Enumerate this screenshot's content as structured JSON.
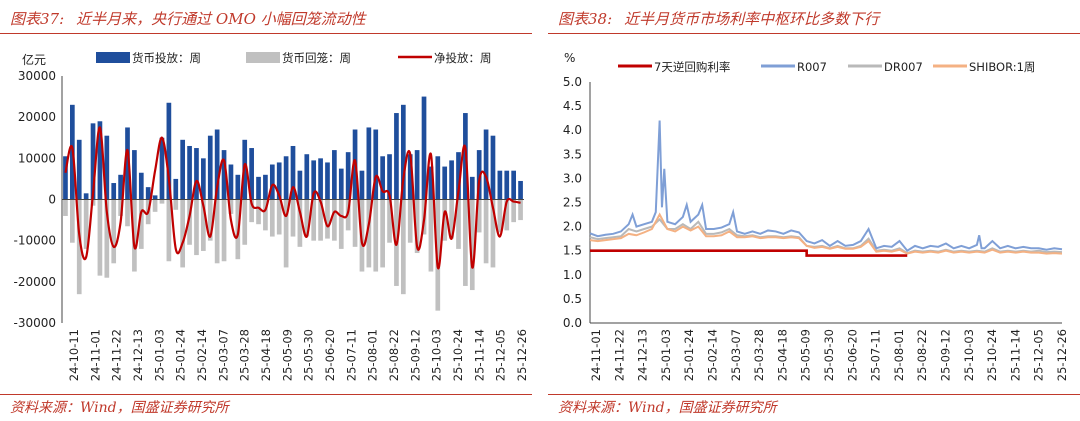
{
  "left": {
    "figure_label": "图表37:",
    "figure_title": "近半月来，央行通过 OMO 小幅回笼流动性",
    "source": "资料来源：Wind，国盛证券研究所"
  },
  "right": {
    "figure_label": "图表38:",
    "figure_title": "近半月货币市场利率中枢环比多数下行",
    "source": "资料来源：Wind，国盛证券研究所"
  },
  "chart_data": [
    {
      "type": "bar",
      "ylabel": "亿元",
      "ylim": [
        -30000,
        30000
      ],
      "yticks": [
        30000,
        20000,
        10000,
        0,
        -10000,
        -20000,
        -30000
      ],
      "xtick_labels": [
        "24-10-11",
        "24-11-01",
        "24-11-22",
        "24-12-13",
        "25-01-03",
        "25-01-24",
        "25-02-14",
        "25-03-07",
        "25-03-28",
        "25-04-18",
        "25-05-09",
        "25-05-30",
        "25-06-20",
        "25-07-11",
        "25-08-01",
        "25-08-22",
        "25-09-12",
        "25-10-03",
        "25-10-24",
        "25-11-14",
        "25-12-05",
        "25-12-26"
      ],
      "legend_placement": "top",
      "colors": {
        "injection": "#1f4e9c",
        "withdrawal": "#c0c0c0",
        "net": "#c00000"
      },
      "series": [
        {
          "name": "货币投放：周",
          "kind": "bar",
          "values": [
            10500,
            23000,
            14500,
            1500,
            18500,
            19000,
            15500,
            4000,
            6000,
            17500,
            12000,
            6500,
            3000,
            1000,
            15000,
            23500,
            5000,
            14500,
            13000,
            12500,
            10000,
            15500,
            17000,
            12000,
            8500,
            6000,
            14500,
            12500,
            5500,
            6000,
            8500,
            9000,
            10500,
            13000,
            7000,
            11000,
            9500,
            10000,
            9000,
            12000,
            7500,
            11500,
            17000,
            7000,
            17500,
            17000,
            10500,
            11000,
            21000,
            23000,
            11000,
            12000,
            25000,
            8000,
            10500,
            8000,
            9500,
            11500,
            21000,
            5500,
            12000,
            17000,
            15500,
            7000,
            7000,
            7000,
            4500
          ]
        },
        {
          "name": "货币回笼：周",
          "kind": "bar",
          "values": [
            -4000,
            -10500,
            -23000,
            -12000,
            -1500,
            -18500,
            -19000,
            -15500,
            -4000,
            -6500,
            -17500,
            -12000,
            -6000,
            -3000,
            -1000,
            -15000,
            -2500,
            -16500,
            -11000,
            -13500,
            -12500,
            -10000,
            -15500,
            -15000,
            -3500,
            -14500,
            -11000,
            -5500,
            -6000,
            -7500,
            -9000,
            -8500,
            -16500,
            -9000,
            -11500,
            -9000,
            -10000,
            -10000,
            -9500,
            -10000,
            -12000,
            -7500,
            -11500,
            -17500,
            -16500,
            -17500,
            -16500,
            -10500,
            -21000,
            -23000,
            -10500,
            -13000,
            -8500,
            -17500,
            -27000,
            -10000,
            -9500,
            -12000,
            -21000,
            -22000,
            -8000,
            -15500,
            -16500,
            -8000,
            -7500,
            -5500,
            -5000
          ]
        },
        {
          "name": "净投放：周",
          "kind": "line",
          "values": [
            6500,
            12500,
            -8500,
            -14000,
            1500,
            17500,
            -3000,
            -11500,
            -5500,
            12000,
            -11500,
            -3000,
            -3000,
            7000,
            15000,
            5000,
            -12000,
            -10500,
            -4000,
            4500,
            -1500,
            -9000,
            3000,
            9500,
            -5000,
            -8500,
            8500,
            -1000,
            -2000,
            -2500,
            3500,
            1000,
            -4000,
            3000,
            -3000,
            -9000,
            1500,
            -500,
            -6500,
            -3000,
            -4000,
            -3000,
            9500,
            -10500,
            -6000,
            5500,
            2000,
            1000,
            -11000,
            5000,
            11000,
            -11500,
            -5000,
            11000,
            -16500,
            -3000,
            -9500,
            2000,
            12500,
            -16500,
            4500,
            5500,
            -2000,
            -9000,
            -500,
            -500,
            -800
          ]
        }
      ]
    },
    {
      "type": "line",
      "ylabel": "%",
      "ylim": [
        0.0,
        5.0
      ],
      "yticks": [
        0.0,
        0.5,
        1.0,
        1.5,
        2.0,
        2.5,
        3.0,
        3.5,
        4.0,
        4.5,
        5.0
      ],
      "xtick_labels": [
        "24-11-01",
        "24-11-22",
        "24-12-13",
        "25-01-03",
        "25-01-24",
        "25-02-14",
        "25-03-07",
        "25-03-28",
        "25-04-18",
        "25-05-09",
        "25-05-30",
        "25-06-20",
        "25-07-11",
        "25-08-01",
        "25-08-22",
        "25-09-12",
        "25-10-03",
        "25-10-24",
        "25-11-14",
        "25-12-05",
        "25-12-26"
      ],
      "legend_placement": "top",
      "colors": {
        "policy": "#c00000",
        "DR007": "#b9b9b9",
        "R007": "#7f9fd6",
        "SHIBOR": "#f4b183"
      },
      "series": [
        {
          "name": "7天逆回购利率",
          "values": [
            [
              0,
              1.5
            ],
            [
              28,
              1.5
            ],
            [
              28,
              1.4
            ],
            [
              41,
              1.4
            ]
          ]
        },
        {
          "name": "R007",
          "values": [
            [
              0,
              1.86
            ],
            [
              1,
              1.8
            ],
            [
              2,
              1.83
            ],
            [
              3,
              1.85
            ],
            [
              4,
              1.9
            ],
            [
              5,
              2.05
            ],
            [
              5.5,
              2.25
            ],
            [
              6,
              2.0
            ],
            [
              7,
              2.05
            ],
            [
              8,
              2.1
            ],
            [
              8.5,
              2.3
            ],
            [
              9,
              4.2
            ],
            [
              9.3,
              2.4
            ],
            [
              9.6,
              3.2
            ],
            [
              10,
              2.1
            ],
            [
              11,
              2.05
            ],
            [
              12,
              2.2
            ],
            [
              12.5,
              2.45
            ],
            [
              13,
              2.1
            ],
            [
              14,
              2.25
            ],
            [
              14.5,
              2.45
            ],
            [
              15,
              1.95
            ],
            [
              16,
              1.95
            ],
            [
              17,
              1.98
            ],
            [
              18,
              2.05
            ],
            [
              18.5,
              2.3
            ],
            [
              19,
              1.9
            ],
            [
              20,
              1.85
            ],
            [
              21,
              1.9
            ],
            [
              22,
              1.85
            ],
            [
              23,
              1.92
            ],
            [
              24,
              1.9
            ],
            [
              25,
              1.85
            ],
            [
              26,
              1.92
            ],
            [
              27,
              1.88
            ],
            [
              28,
              1.7
            ],
            [
              29,
              1.65
            ],
            [
              30,
              1.72
            ],
            [
              31,
              1.6
            ],
            [
              32,
              1.7
            ],
            [
              33,
              1.6
            ],
            [
              34,
              1.62
            ],
            [
              35,
              1.7
            ],
            [
              36,
              1.95
            ],
            [
              37,
              1.55
            ],
            [
              38,
              1.6
            ],
            [
              39,
              1.58
            ],
            [
              40,
              1.7
            ],
            [
              41,
              1.5
            ],
            [
              42,
              1.6
            ],
            [
              43,
              1.55
            ],
            [
              44,
              1.6
            ],
            [
              45,
              1.58
            ],
            [
              46,
              1.65
            ],
            [
              47,
              1.55
            ],
            [
              48,
              1.6
            ],
            [
              49,
              1.55
            ],
            [
              50,
              1.62
            ],
            [
              50.3,
              1.82
            ],
            [
              50.6,
              1.55
            ],
            [
              51,
              1.55
            ],
            [
              52,
              1.7
            ],
            [
              53,
              1.55
            ],
            [
              54,
              1.6
            ],
            [
              55,
              1.55
            ],
            [
              56,
              1.58
            ],
            [
              57,
              1.55
            ],
            [
              58,
              1.55
            ],
            [
              59,
              1.52
            ],
            [
              60,
              1.55
            ],
            [
              61,
              1.53
            ]
          ]
        },
        {
          "name": "DR007",
          "values": [
            [
              0,
              1.78
            ],
            [
              1,
              1.74
            ],
            [
              2,
              1.76
            ],
            [
              3,
              1.78
            ],
            [
              4,
              1.8
            ],
            [
              5,
              1.95
            ],
            [
              6,
              1.9
            ],
            [
              7,
              1.95
            ],
            [
              8,
              2.0
            ],
            [
              9,
              2.15
            ],
            [
              10,
              1.95
            ],
            [
              11,
              1.95
            ],
            [
              12,
              2.05
            ],
            [
              13,
              1.95
            ],
            [
              14,
              2.1
            ],
            [
              15,
              1.85
            ],
            [
              16,
              1.85
            ],
            [
              17,
              1.88
            ],
            [
              18,
              1.95
            ],
            [
              19,
              1.82
            ],
            [
              20,
              1.8
            ],
            [
              21,
              1.82
            ],
            [
              22,
              1.78
            ],
            [
              23,
              1.8
            ],
            [
              24,
              1.8
            ],
            [
              25,
              1.78
            ],
            [
              26,
              1.8
            ],
            [
              27,
              1.78
            ],
            [
              28,
              1.6
            ],
            [
              29,
              1.58
            ],
            [
              30,
              1.6
            ],
            [
              31,
              1.55
            ],
            [
              32,
              1.6
            ],
            [
              33,
              1.55
            ],
            [
              34,
              1.55
            ],
            [
              35,
              1.6
            ],
            [
              36,
              1.75
            ],
            [
              37,
              1.5
            ],
            [
              38,
              1.52
            ],
            [
              39,
              1.5
            ],
            [
              40,
              1.55
            ],
            [
              41,
              1.45
            ],
            [
              42,
              1.5
            ],
            [
              43,
              1.48
            ],
            [
              44,
              1.5
            ],
            [
              45,
              1.48
            ],
            [
              46,
              1.52
            ],
            [
              47,
              1.48
            ],
            [
              48,
              1.5
            ],
            [
              49,
              1.48
            ],
            [
              50,
              1.5
            ],
            [
              51,
              1.48
            ],
            [
              52,
              1.55
            ],
            [
              53,
              1.48
            ],
            [
              54,
              1.5
            ],
            [
              55,
              1.48
            ],
            [
              56,
              1.5
            ],
            [
              57,
              1.48
            ],
            [
              58,
              1.5
            ],
            [
              59,
              1.47
            ],
            [
              60,
              1.48
            ],
            [
              61,
              1.47
            ]
          ]
        },
        {
          "name": "SHIBOR:1周",
          "values": [
            [
              0,
              1.72
            ],
            [
              1,
              1.7
            ],
            [
              2,
              1.72
            ],
            [
              3,
              1.74
            ],
            [
              4,
              1.76
            ],
            [
              5,
              1.85
            ],
            [
              6,
              1.82
            ],
            [
              7,
              1.88
            ],
            [
              8,
              1.95
            ],
            [
              9,
              2.25
            ],
            [
              10,
              1.95
            ],
            [
              11,
              1.9
            ],
            [
              12,
              2.0
            ],
            [
              13,
              1.92
            ],
            [
              14,
              2.0
            ],
            [
              15,
              1.8
            ],
            [
              16,
              1.8
            ],
            [
              17,
              1.82
            ],
            [
              18,
              1.9
            ],
            [
              19,
              1.78
            ],
            [
              20,
              1.78
            ],
            [
              21,
              1.8
            ],
            [
              22,
              1.76
            ],
            [
              23,
              1.78
            ],
            [
              24,
              1.78
            ],
            [
              25,
              1.76
            ],
            [
              26,
              1.78
            ],
            [
              27,
              1.76
            ],
            [
              28,
              1.6
            ],
            [
              29,
              1.56
            ],
            [
              30,
              1.58
            ],
            [
              31,
              1.54
            ],
            [
              32,
              1.58
            ],
            [
              33,
              1.54
            ],
            [
              34,
              1.54
            ],
            [
              35,
              1.58
            ],
            [
              36,
              1.7
            ],
            [
              37,
              1.48
            ],
            [
              38,
              1.5
            ],
            [
              39,
              1.48
            ],
            [
              40,
              1.52
            ],
            [
              41,
              1.44
            ],
            [
              42,
              1.48
            ],
            [
              43,
              1.46
            ],
            [
              44,
              1.48
            ],
            [
              45,
              1.46
            ],
            [
              46,
              1.5
            ],
            [
              47,
              1.46
            ],
            [
              48,
              1.48
            ],
            [
              49,
              1.46
            ],
            [
              50,
              1.48
            ],
            [
              51,
              1.46
            ],
            [
              52,
              1.52
            ],
            [
              53,
              1.46
            ],
            [
              54,
              1.48
            ],
            [
              55,
              1.46
            ],
            [
              56,
              1.48
            ],
            [
              57,
              1.46
            ],
            [
              58,
              1.46
            ],
            [
              59,
              1.44
            ],
            [
              60,
              1.45
            ],
            [
              61,
              1.44
            ]
          ]
        }
      ]
    }
  ]
}
